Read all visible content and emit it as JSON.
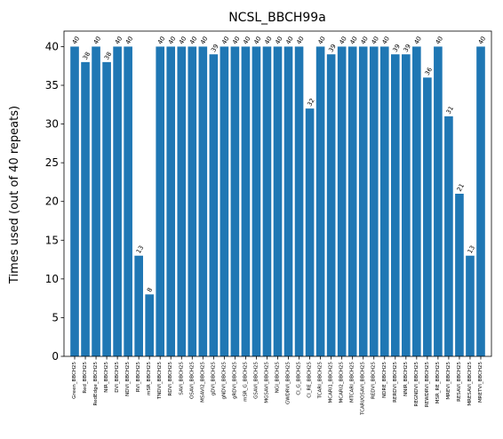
{
  "chart_data": {
    "type": "bar",
    "title": "NCSL_BBCH99a",
    "xlabel": "",
    "ylabel": "Times used (out of 40 repeats)",
    "ylim": [
      0,
      42
    ],
    "yticks": [
      0,
      5,
      10,
      15,
      20,
      25,
      30,
      35,
      40
    ],
    "grid": false,
    "bar_color": "#1f77b4",
    "categories": [
      "Green_BBCH25",
      "Red_BBCH25",
      "RedEdge_BBCH25",
      "NIR_BBCH25",
      "DVI_BBCH25",
      "NDVI_BBCH25",
      "RVI_BBCH25",
      "mSR_BBCH25",
      "TNDVI_BBCH25",
      "RDVI_BBCH25",
      "SAVI_BBCH25",
      "OSAVI_BBCH25",
      "MSAVI2_BBCH25",
      "gDVI_BBCH25",
      "gNDVI_BBCH25",
      "gRDVI_BBCH25",
      "mSR_G_BBCH25",
      "GSAVI_BBCH25",
      "MGSAVI_BBCH25",
      "NGI_BBCH25",
      "GWDRVI_BBCH25",
      "CI_G_BBCH25",
      "CI_RE_BBCH25",
      "TCARI_BBCH25",
      "MCARI1_BBCH25",
      "MCARI2_BBCH25",
      "MTCARI_BBCH25",
      "TCARI/OSAVI_BBCH25",
      "REDVI_BBCH25",
      "NDRE_BBCH25",
      "RERDVI_BBCH25",
      "NNIR_BBCH25",
      "REGNDVI_BBCH25",
      "REWDRVI_BBCH25",
      "MSR_RE_BBCH25",
      "MREVI_BBCH25",
      "RESAVI_BBCH25",
      "MRESAVI_BBCH25",
      "MRETVI_BBCH25"
    ],
    "values": [
      40,
      38,
      40,
      38,
      40,
      40,
      13,
      8,
      40,
      40,
      40,
      40,
      40,
      39,
      40,
      40,
      40,
      40,
      40,
      40,
      40,
      40,
      32,
      40,
      39,
      40,
      40,
      40,
      40,
      40,
      39,
      39,
      40,
      36,
      40,
      31,
      21,
      13,
      40
    ],
    "data_labels": [
      "40",
      "38",
      "40",
      "38",
      "40",
      "40",
      "13",
      "8",
      "40",
      "40",
      "40",
      "40",
      "40",
      "39",
      "40",
      "40",
      "40",
      "40",
      "40",
      "40",
      "40",
      "40",
      "32",
      "40",
      "39",
      "40",
      "40",
      "40",
      "40",
      "40",
      "39",
      "39",
      "40",
      "36",
      "40",
      "31",
      "21",
      "13",
      "40"
    ]
  }
}
